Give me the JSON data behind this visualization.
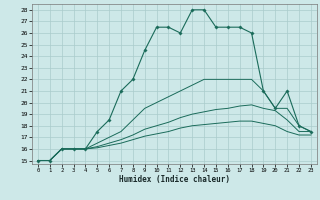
{
  "xlabel": "Humidex (Indice chaleur)",
  "bg_color": "#cde8e8",
  "grid_color": "#aacccc",
  "line_color": "#1a6b5a",
  "xlim": [
    -0.5,
    23.5
  ],
  "ylim": [
    14.7,
    28.5
  ],
  "xticks": [
    0,
    1,
    2,
    3,
    4,
    5,
    6,
    7,
    8,
    9,
    10,
    11,
    12,
    13,
    14,
    15,
    16,
    17,
    18,
    19,
    20,
    21,
    22,
    23
  ],
  "yticks": [
    15,
    16,
    17,
    18,
    19,
    20,
    21,
    22,
    23,
    24,
    25,
    26,
    27,
    28
  ],
  "s1_x": [
    0,
    1,
    2,
    3,
    4,
    5,
    6,
    7,
    8,
    9,
    10,
    11,
    12,
    13,
    14,
    15,
    16,
    17,
    18,
    19,
    20,
    21,
    22,
    23
  ],
  "s1_y": [
    15,
    15,
    16,
    16,
    16,
    17.5,
    18.5,
    21.0,
    22.0,
    24.5,
    26.5,
    26.5,
    26.0,
    28.0,
    28.0,
    26.5,
    26.5,
    26.5,
    26.0,
    21.0,
    19.5,
    21.0,
    18.0,
    17.5
  ],
  "s2_x": [
    0,
    1,
    2,
    3,
    4,
    5,
    6,
    7,
    8,
    9,
    10,
    11,
    12,
    13,
    14,
    15,
    16,
    17,
    18,
    19,
    20,
    21,
    22,
    23
  ],
  "s2_y": [
    15,
    15,
    16,
    16,
    16,
    16.5,
    17.0,
    17.5,
    18.5,
    19.5,
    20.0,
    20.5,
    21.0,
    21.5,
    22.0,
    22.0,
    22.0,
    22.0,
    22.0,
    21.0,
    19.5,
    19.5,
    18.0,
    17.5
  ],
  "s3_x": [
    0,
    1,
    2,
    3,
    4,
    5,
    6,
    7,
    8,
    9,
    10,
    11,
    12,
    13,
    14,
    15,
    16,
    17,
    18,
    19,
    20,
    21,
    22,
    23
  ],
  "s3_y": [
    15,
    15,
    16,
    16,
    16,
    16.2,
    16.5,
    16.8,
    17.2,
    17.7,
    18.0,
    18.3,
    18.7,
    19.0,
    19.2,
    19.4,
    19.5,
    19.7,
    19.8,
    19.5,
    19.3,
    18.5,
    17.5,
    17.5
  ],
  "s4_x": [
    0,
    1,
    2,
    3,
    4,
    5,
    6,
    7,
    8,
    9,
    10,
    11,
    12,
    13,
    14,
    15,
    16,
    17,
    18,
    19,
    20,
    21,
    22,
    23
  ],
  "s4_y": [
    15,
    15,
    16,
    16,
    16,
    16.1,
    16.3,
    16.5,
    16.8,
    17.1,
    17.3,
    17.5,
    17.8,
    18.0,
    18.1,
    18.2,
    18.3,
    18.4,
    18.4,
    18.2,
    18.0,
    17.5,
    17.2,
    17.2
  ]
}
